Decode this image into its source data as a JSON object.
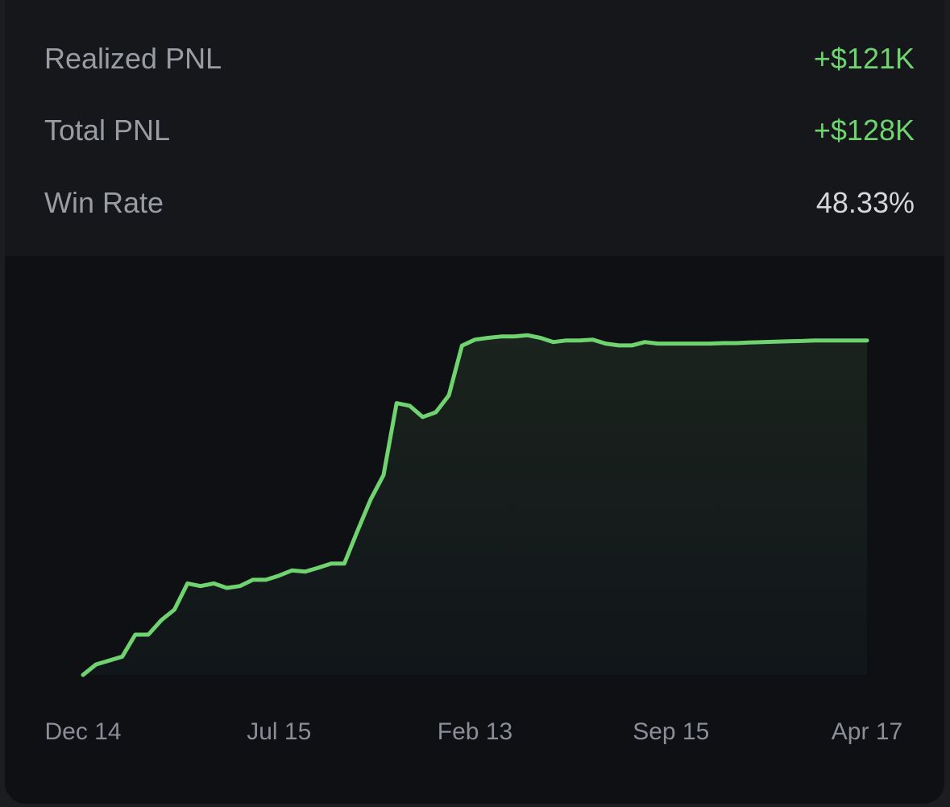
{
  "stats": [
    {
      "label": "Realized PNL",
      "value": "+$121K"
    },
    {
      "label": "Total PNL",
      "value": "+$128K"
    },
    {
      "label": "Win Rate",
      "value": "48.33%"
    }
  ],
  "chart_data": {
    "type": "line",
    "x": [
      0,
      1,
      2,
      3,
      4,
      5,
      6,
      7,
      8,
      9,
      10,
      11,
      12,
      13,
      14,
      15,
      16,
      17,
      18,
      19,
      20,
      21,
      22,
      23,
      24,
      25,
      26,
      27,
      28,
      29,
      30,
      31,
      32,
      33,
      34,
      35,
      36,
      37,
      38,
      39,
      40,
      41,
      42,
      43,
      44,
      45,
      46,
      47,
      48,
      49,
      50,
      51,
      52,
      53,
      54,
      55,
      56,
      57,
      58,
      59,
      60
    ],
    "series": [
      {
        "color": "#6fd36f",
        "values": [
          0,
          4,
          5.5,
          7,
          15.4,
          15.4,
          21,
          25,
          35,
          34,
          35,
          33.3,
          34,
          36.4,
          36.4,
          38,
          40,
          39.5,
          41,
          42.6,
          42.6,
          55,
          67,
          76.5,
          104,
          103,
          98.7,
          100.5,
          107,
          126,
          128.3,
          129,
          129.5,
          129.5,
          130,
          129,
          127.4,
          128,
          128,
          128.3,
          126.8,
          126.1,
          126.1,
          127.4,
          126.8,
          126.8,
          126.8,
          126.8,
          126.8,
          127,
          127,
          127.2,
          127.4,
          127.5,
          127.7,
          127.8,
          128,
          128,
          128,
          128,
          128
        ]
      }
    ],
    "xlim": [
      0,
      60
    ],
    "xticks": [
      {
        "value": 0,
        "label": "Dec 14"
      },
      {
        "value": 15,
        "label": "Jul 15"
      },
      {
        "value": 30,
        "label": "Feb 13"
      },
      {
        "value": 45,
        "label": "Sep 15"
      },
      {
        "value": 60,
        "label": "Apr 17"
      }
    ],
    "ylim": [
      0,
      135
    ]
  }
}
